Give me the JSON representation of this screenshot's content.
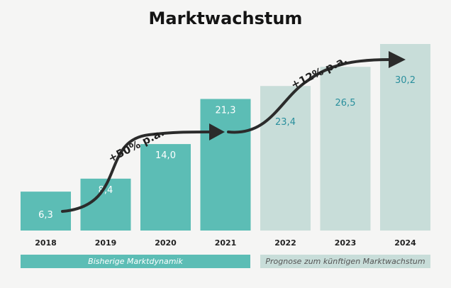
{
  "title": "Marktwachstum",
  "chart_data": {
    "type": "bar",
    "title": "Marktwachstum",
    "categories": [
      "2018",
      "2019",
      "2020",
      "2021",
      "2022",
      "2023",
      "2024"
    ],
    "values": [
      6.3,
      8.4,
      14.0,
      21.3,
      23.4,
      26.5,
      30.2
    ],
    "value_labels": [
      "6,3",
      "8,4",
      "14,0",
      "21,3",
      "23,4",
      "26,5",
      "30,2"
    ],
    "kind": [
      "actual",
      "actual",
      "actual",
      "actual",
      "forecast",
      "forecast",
      "forecast"
    ],
    "ylim": [
      0,
      30.2
    ],
    "xlabel": "",
    "ylabel": "",
    "grid": false,
    "colors": {
      "actual_bar": "#5cbdb5",
      "forecast_bar": "#c8ddd9",
      "actual_label": "#ffffff",
      "forecast_label": "#2a8f9d",
      "arrow": "#2b2b2b"
    },
    "annotations": [
      {
        "text": "+50% p.a.",
        "segment": "historical"
      },
      {
        "text": "+12% p.a.",
        "segment": "forecast"
      }
    ]
  },
  "bands": {
    "historical": "Bisherige Marktdynamik",
    "forecast": "Prognose zum künftigen Marktwachstum"
  }
}
